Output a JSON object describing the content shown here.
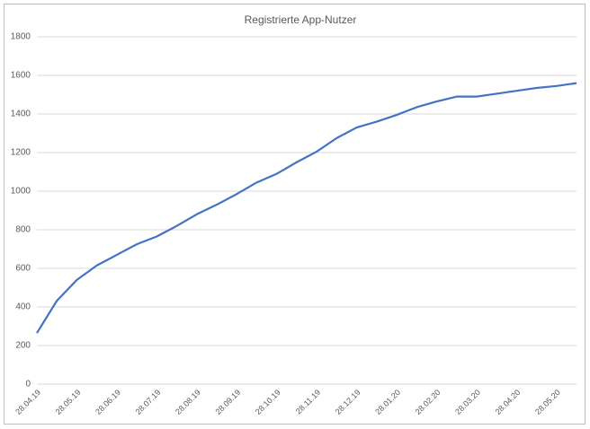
{
  "chart_data": {
    "type": "line",
    "title": "Registrierte App-Nutzer",
    "categories": [
      "28.04.19",
      null,
      "28.05.19",
      null,
      "28.06.19",
      null,
      "28.07.19",
      null,
      "28.08.19",
      null,
      "28.09.19",
      null,
      "28.10.19",
      null,
      "28.11.19",
      null,
      "28.12.19",
      null,
      "28.01.20",
      null,
      "28.02.20",
      null,
      "28.03.20",
      null,
      "28.04.20",
      null,
      "28.05.20",
      null
    ],
    "series": [
      {
        "name": "Registrierte App-Nutzer",
        "color": "#4472c4",
        "values": [
          265,
          432,
          540,
          615,
          670,
          725,
          765,
          820,
          880,
          930,
          985,
          1045,
          1090,
          1150,
          1205,
          1275,
          1330,
          1360,
          1395,
          1435,
          1465,
          1490,
          1490,
          1505,
          1520,
          1535,
          1545,
          1560
        ]
      }
    ],
    "ylim": [
      0,
      1800
    ],
    "yticks": [
      0,
      200,
      400,
      600,
      800,
      1000,
      1200,
      1400,
      1600,
      1800
    ],
    "grid": true
  }
}
